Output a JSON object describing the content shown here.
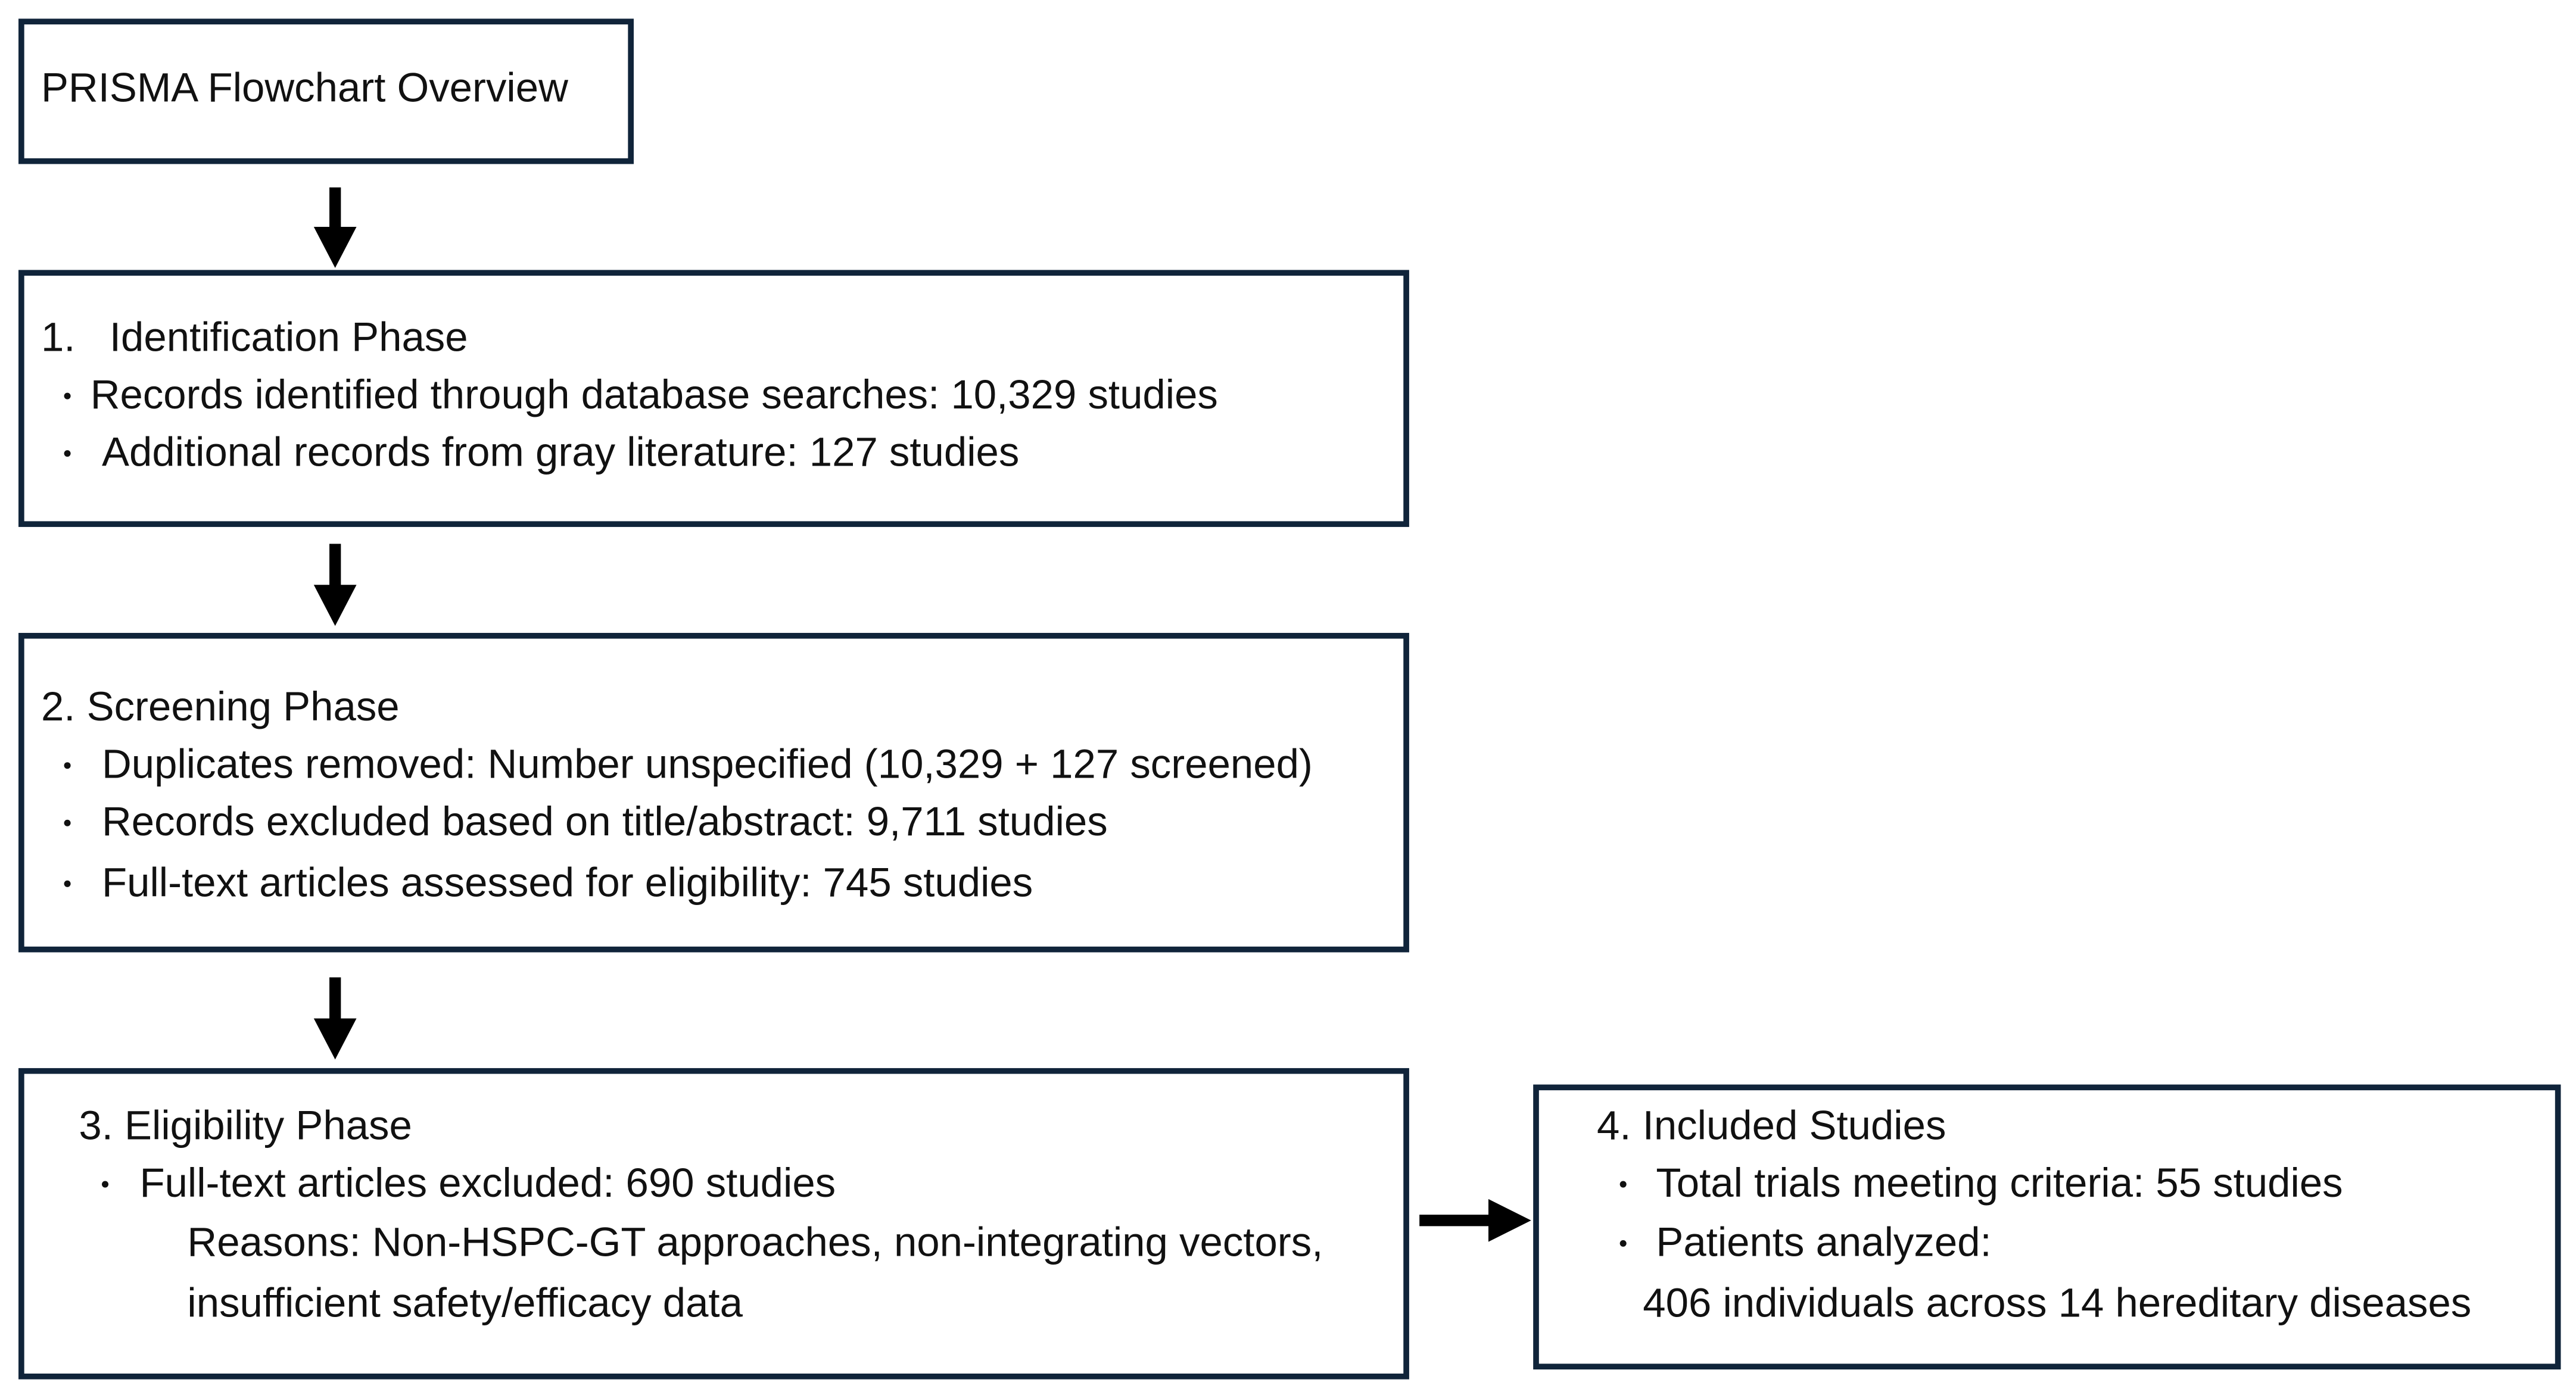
{
  "title": "PRISMA Flowchart Overview",
  "phases": [
    {
      "heading": "1.   Identification Phase",
      "items": [
        "Records identified through database searches: 10,329 studies",
        "Additional records from gray literature: 127 studies"
      ]
    },
    {
      "heading": "2. Screening Phase",
      "items": [
        "Duplicates removed: Number unspecified (10,329 + 127 screened)",
        "Records excluded based on title/abstract: 9,711 studies",
        "Full-text articles assessed for eligibility: 745 studies"
      ]
    },
    {
      "heading": "3. Eligibility Phase",
      "items": [
        "Full-text articles excluded: 690 studies"
      ],
      "details": [
        "Reasons: Non-HSPC-GT approaches, non-integrating vectors,",
        "insufficient safety/efficacy data"
      ]
    },
    {
      "heading": "4. Included Studies",
      "items": [
        "Total trials meeting criteria: 55 studies",
        "Patients analyzed:"
      ],
      "details": [
        "406 individuals across 14 hereditary diseases"
      ]
    }
  ]
}
